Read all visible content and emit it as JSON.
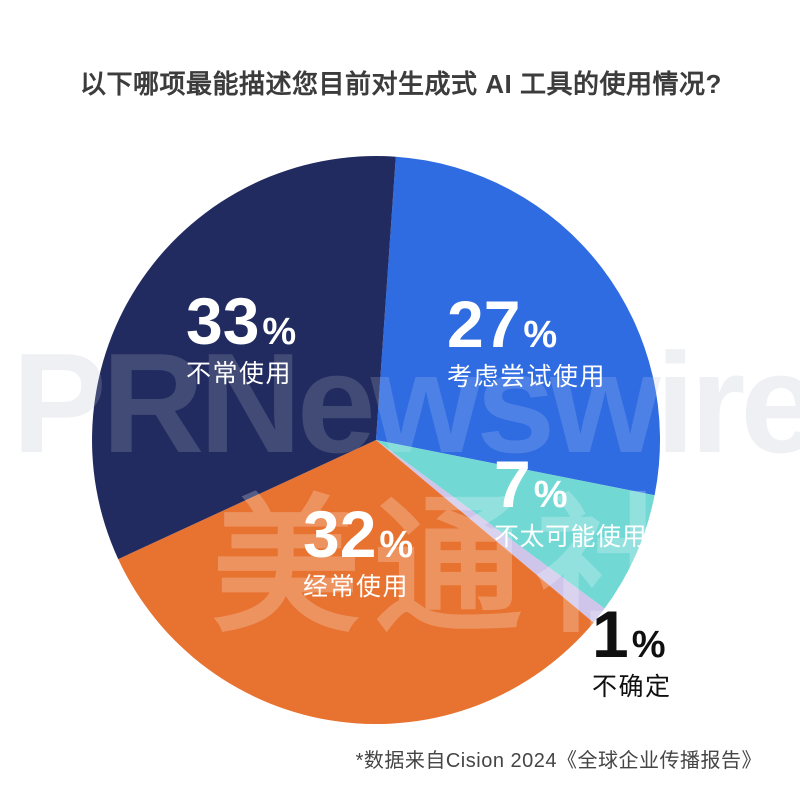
{
  "title": "以下哪项最能描述您目前对生成式 AI 工具的使用情况?",
  "footnote": "*数据来自Cision 2024《全球企业传播报告》",
  "percent_sign": "%",
  "watermark": {
    "brand": "PRNewswire",
    "reg": "®",
    "cn": "美通社"
  },
  "chart_data": {
    "type": "pie",
    "title": "以下哪项最能描述您目前对生成式 AI 工具的使用情况?",
    "direction": "clockwise",
    "start_angle_deg": 4,
    "unit": "%",
    "source": "*数据来自Cision 2024《全球企业传播报告》",
    "segments": [
      {
        "key": "considering",
        "label": "考虑尝试使用",
        "value": 27,
        "color": "#2f6be1"
      },
      {
        "key": "unlikely",
        "label": "不太可能使用",
        "value": 7,
        "color": "#72d8d4"
      },
      {
        "key": "unsure",
        "label": "不确定",
        "value": 1,
        "color": "#cfc5ea"
      },
      {
        "key": "often",
        "label": "经常使用",
        "value": 32,
        "color": "#e8722f"
      },
      {
        "key": "rarely",
        "label": "不常使用",
        "value": 33,
        "color": "#212b5f"
      }
    ],
    "colors": {
      "background": "#ffffff",
      "title_text": "#3c3c3c",
      "label_text_light": "#ffffff",
      "label_text_dark": "#101010",
      "watermark_gray": "#edeef2"
    }
  }
}
